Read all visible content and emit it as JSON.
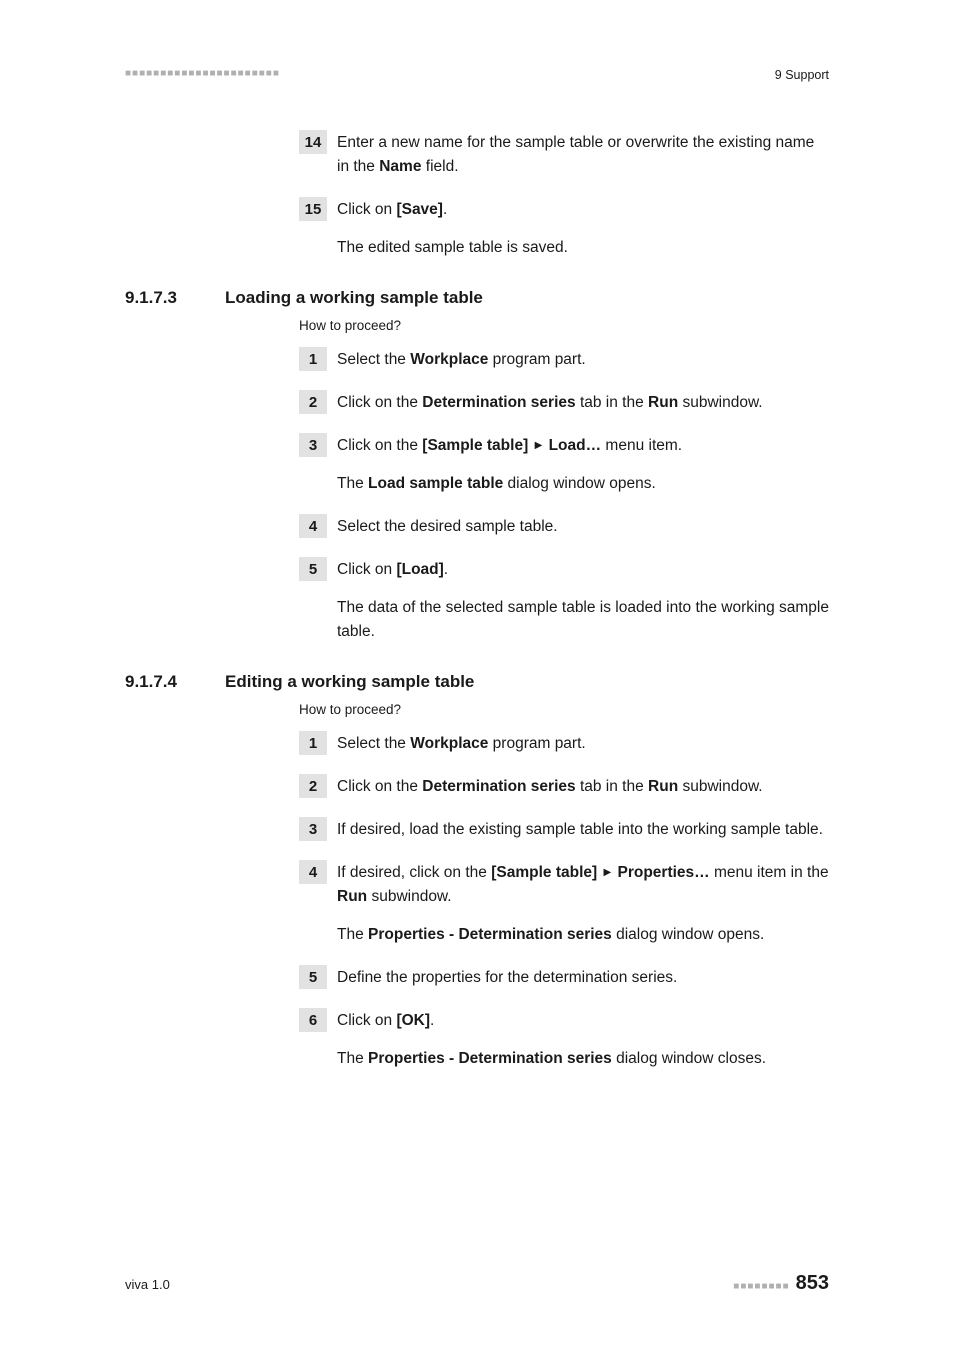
{
  "header": {
    "marks": "■■■■■■■■■■■■■■■■■■■■■■",
    "chapter": "9 Support"
  },
  "s0": {
    "steps": [
      {
        "num": "14",
        "lines": [
          {
            "parts": [
              "Enter a new name for the sample table or overwrite the existing name in the ",
              "Name",
              " field."
            ]
          }
        ]
      },
      {
        "num": "15",
        "lines": [
          {
            "parts": [
              "Click on ",
              "[Save]",
              "."
            ]
          },
          {
            "plain": "The edited sample table is saved."
          }
        ]
      }
    ]
  },
  "s1": {
    "num": "9.1.7.3",
    "title": "Loading a working sample table",
    "howto": "How to proceed?",
    "steps": [
      {
        "num": "1",
        "lines": [
          {
            "parts": [
              "Select the ",
              "Workplace",
              " program part."
            ]
          }
        ]
      },
      {
        "num": "2",
        "lines": [
          {
            "parts": [
              "Click on the ",
              "Determination series",
              " tab in the ",
              "Run",
              " subwindow."
            ]
          }
        ]
      },
      {
        "num": "3",
        "lines": [
          {
            "parts": [
              "Click on the ",
              "[Sample table]",
              " ▸ ",
              "Load…",
              " menu item."
            ]
          },
          {
            "parts": [
              "The ",
              "Load sample table",
              " dialog window opens."
            ]
          }
        ]
      },
      {
        "num": "4",
        "lines": [
          {
            "plain": "Select the desired sample table."
          }
        ]
      },
      {
        "num": "5",
        "lines": [
          {
            "parts": [
              "Click on ",
              "[Load]",
              "."
            ]
          },
          {
            "plain": "The data of the selected sample table is loaded into the working sample table."
          }
        ]
      }
    ]
  },
  "s2": {
    "num": "9.1.7.4",
    "title": "Editing a working sample table",
    "howto": "How to proceed?",
    "steps": [
      {
        "num": "1",
        "lines": [
          {
            "parts": [
              "Select the ",
              "Workplace",
              " program part."
            ]
          }
        ]
      },
      {
        "num": "2",
        "lines": [
          {
            "parts": [
              "Click on the ",
              "Determination series",
              " tab in the ",
              "Run",
              " subwindow."
            ]
          }
        ]
      },
      {
        "num": "3",
        "lines": [
          {
            "plain": "If desired, load the existing sample table into the working sample table."
          }
        ]
      },
      {
        "num": "4",
        "lines": [
          {
            "parts": [
              "If desired, click on the ",
              "[Sample table]",
              " ▸ ",
              "Properties…",
              " menu item in the ",
              "Run",
              " subwindow."
            ]
          },
          {
            "parts": [
              "The ",
              "Properties - Determination series",
              " dialog window opens."
            ]
          }
        ]
      },
      {
        "num": "5",
        "lines": [
          {
            "plain": "Define the properties for the determination series."
          }
        ]
      },
      {
        "num": "6",
        "lines": [
          {
            "parts": [
              "Click on ",
              "[OK]",
              "."
            ]
          },
          {
            "parts": [
              "The ",
              "Properties - Determination series",
              " dialog window closes."
            ]
          }
        ]
      }
    ]
  },
  "footer": {
    "left": "viva 1.0",
    "marks": "■■■■■■■■",
    "page": "853"
  }
}
